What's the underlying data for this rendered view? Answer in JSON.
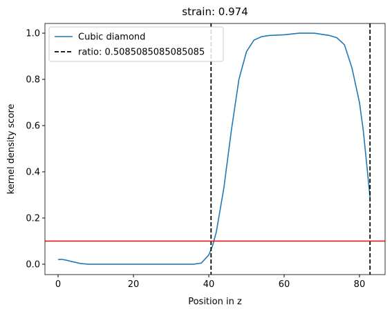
{
  "chart_data": {
    "type": "line",
    "title": "strain: 0.974",
    "x_label": "Position in z",
    "y_label": "kernel density score",
    "series": [
      {
        "name": "Cubic diamond",
        "color": "#1f77b4",
        "x": [
          0,
          1,
          2,
          4,
          6,
          8,
          12,
          20,
          30,
          36,
          38,
          40,
          41,
          42,
          44,
          46,
          48,
          50,
          52,
          54,
          56,
          60,
          64,
          68,
          72,
          74,
          76,
          78,
          80,
          81,
          82,
          82.8
        ],
        "values": [
          0.02,
          0.021,
          0.018,
          0.01,
          0.003,
          0.0,
          0.0,
          0.0,
          0.0,
          0.0,
          0.005,
          0.04,
          0.08,
          0.14,
          0.33,
          0.58,
          0.8,
          0.92,
          0.97,
          0.985,
          0.99,
          0.993,
          1.0,
          1.0,
          0.99,
          0.98,
          0.95,
          0.85,
          0.7,
          0.58,
          0.42,
          0.29
        ]
      }
    ],
    "vlines": {
      "name": "ratio: 0.5085085085085085",
      "color": "#000000",
      "x": [
        40.6,
        82.8
      ]
    },
    "hline": {
      "color": "#e41a1c",
      "y": 0.1
    },
    "xlim": [
      -3.5,
      86.8
    ],
    "xticks": [
      0,
      20,
      40,
      60,
      80
    ],
    "ylim": [
      -0.045,
      1.042
    ],
    "yticks": [
      {
        "value": 0,
        "label": "0.0"
      },
      0.2,
      0.4,
      0.6,
      0.8,
      {
        "value": 1,
        "label": "1.0"
      }
    ],
    "legend": "upper left"
  }
}
